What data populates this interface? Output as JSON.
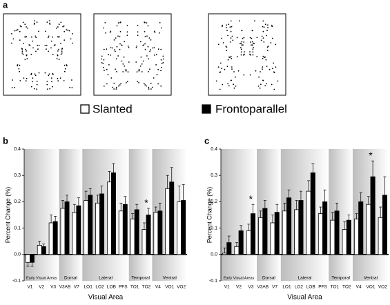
{
  "panel_a": {
    "label": "a"
  },
  "legend": {
    "items": [
      "Slanted",
      "Frontoparallel"
    ]
  },
  "chart_data": [
    {
      "type": "bar",
      "panel_label": "b",
      "xlabel": "Visual Area",
      "ylabel": "Percent Change (%)",
      "ylim": [
        -0.1,
        0.4
      ],
      "yticks": [
        {
          "value": -0.1,
          "label": "-0.1"
        },
        {
          "value": 0,
          "label": "0.0"
        },
        {
          "value": 0.1,
          "label": "0.1"
        },
        {
          "value": 0.2,
          "label": "0.2"
        },
        {
          "value": 0.3,
          "label": "0.3"
        },
        {
          "value": 0.4,
          "label": "0.4"
        }
      ],
      "groups": [
        {
          "label": "Early Visual Areas",
          "categories": [
            "V1",
            "V2",
            "V3"
          ]
        },
        {
          "label": "Dorsal",
          "categories": [
            "V3AB",
            "V7"
          ]
        },
        {
          "label": "Lateral",
          "categories": [
            "LO1",
            "LO2",
            "LOB",
            "PFS"
          ]
        },
        {
          "label": "Temporal",
          "categories": [
            "TO1",
            "TO2"
          ]
        },
        {
          "label": "Ventral",
          "categories": [
            "V4",
            "VO1",
            "VO2"
          ]
        }
      ],
      "series": [
        {
          "color": "#ffffff",
          "values": [
            -0.03,
            0.035,
            0.12,
            0.175,
            0.16,
            0.205,
            0.195,
            0.275,
            0.165,
            0.135,
            0.095,
            0.16,
            0.25,
            0.2
          ],
          "errors": [
            0.015,
            0.015,
            0.03,
            0.03,
            0.03,
            0.035,
            0.03,
            0.04,
            0.03,
            0.02,
            0.025,
            0.02,
            0.05,
            0.06
          ]
        },
        {
          "color": "#000000",
          "values": [
            -0.03,
            0.03,
            0.125,
            0.2,
            0.185,
            0.225,
            0.23,
            0.31,
            0.19,
            0.17,
            0.15,
            0.165,
            0.275,
            0.205
          ],
          "errors": [
            0.015,
            0.01,
            0.02,
            0.025,
            0.03,
            0.025,
            0.03,
            0.035,
            0.03,
            0.02,
            0.025,
            0.03,
            0.055,
            0.06
          ]
        }
      ],
      "annotations": [
        {
          "text": "*",
          "at": "TO2"
        }
      ]
    },
    {
      "type": "bar",
      "panel_label": "c",
      "xlabel": "Visual Area",
      "ylabel": "Percent Change (%)",
      "ylim": [
        -0.1,
        0.4
      ],
      "yticks": [
        {
          "value": -0.1,
          "label": "-0.1"
        },
        {
          "value": 0,
          "label": "0.0"
        },
        {
          "value": 0.1,
          "label": "0.1"
        },
        {
          "value": 0.2,
          "label": "0.2"
        },
        {
          "value": 0.3,
          "label": "0.3"
        },
        {
          "value": 0.4,
          "label": "0.4"
        }
      ],
      "groups": [
        {
          "label": "Early Visual Areas",
          "categories": [
            "V1",
            "V2",
            "V3"
          ]
        },
        {
          "label": "Dorsal",
          "categories": [
            "V3AB",
            "V7"
          ]
        },
        {
          "label": "Lateral",
          "categories": [
            "LO1",
            "LO2",
            "LOB",
            "PFS"
          ]
        },
        {
          "label": "Temporal",
          "categories": [
            "TO1",
            "TO2"
          ]
        },
        {
          "label": "Ventral",
          "categories": [
            "V4",
            "VO1",
            "VO2"
          ]
        }
      ],
      "series": [
        {
          "color": "#ffffff",
          "values": [
            0.005,
            0.03,
            0.09,
            0.14,
            0.12,
            0.165,
            0.17,
            0.24,
            0.155,
            0.13,
            0.095,
            0.135,
            0.19,
            0.14
          ],
          "errors": [
            0.02,
            0.015,
            0.025,
            0.025,
            0.03,
            0.03,
            0.035,
            0.04,
            0.025,
            0.03,
            0.03,
            0.02,
            0.03,
            0.04
          ]
        },
        {
          "color": "#000000",
          "values": [
            0.045,
            0.09,
            0.155,
            0.175,
            0.16,
            0.215,
            0.205,
            0.31,
            0.2,
            0.165,
            0.13,
            0.2,
            0.295,
            0.225
          ],
          "errors": [
            0.025,
            0.02,
            0.035,
            0.03,
            0.03,
            0.03,
            0.035,
            0.035,
            0.045,
            0.03,
            0.02,
            0.035,
            0.06,
            0.07
          ]
        }
      ],
      "annotations": [
        {
          "text": "*",
          "at": "V3"
        },
        {
          "text": "*",
          "at": "VO1"
        }
      ]
    }
  ]
}
